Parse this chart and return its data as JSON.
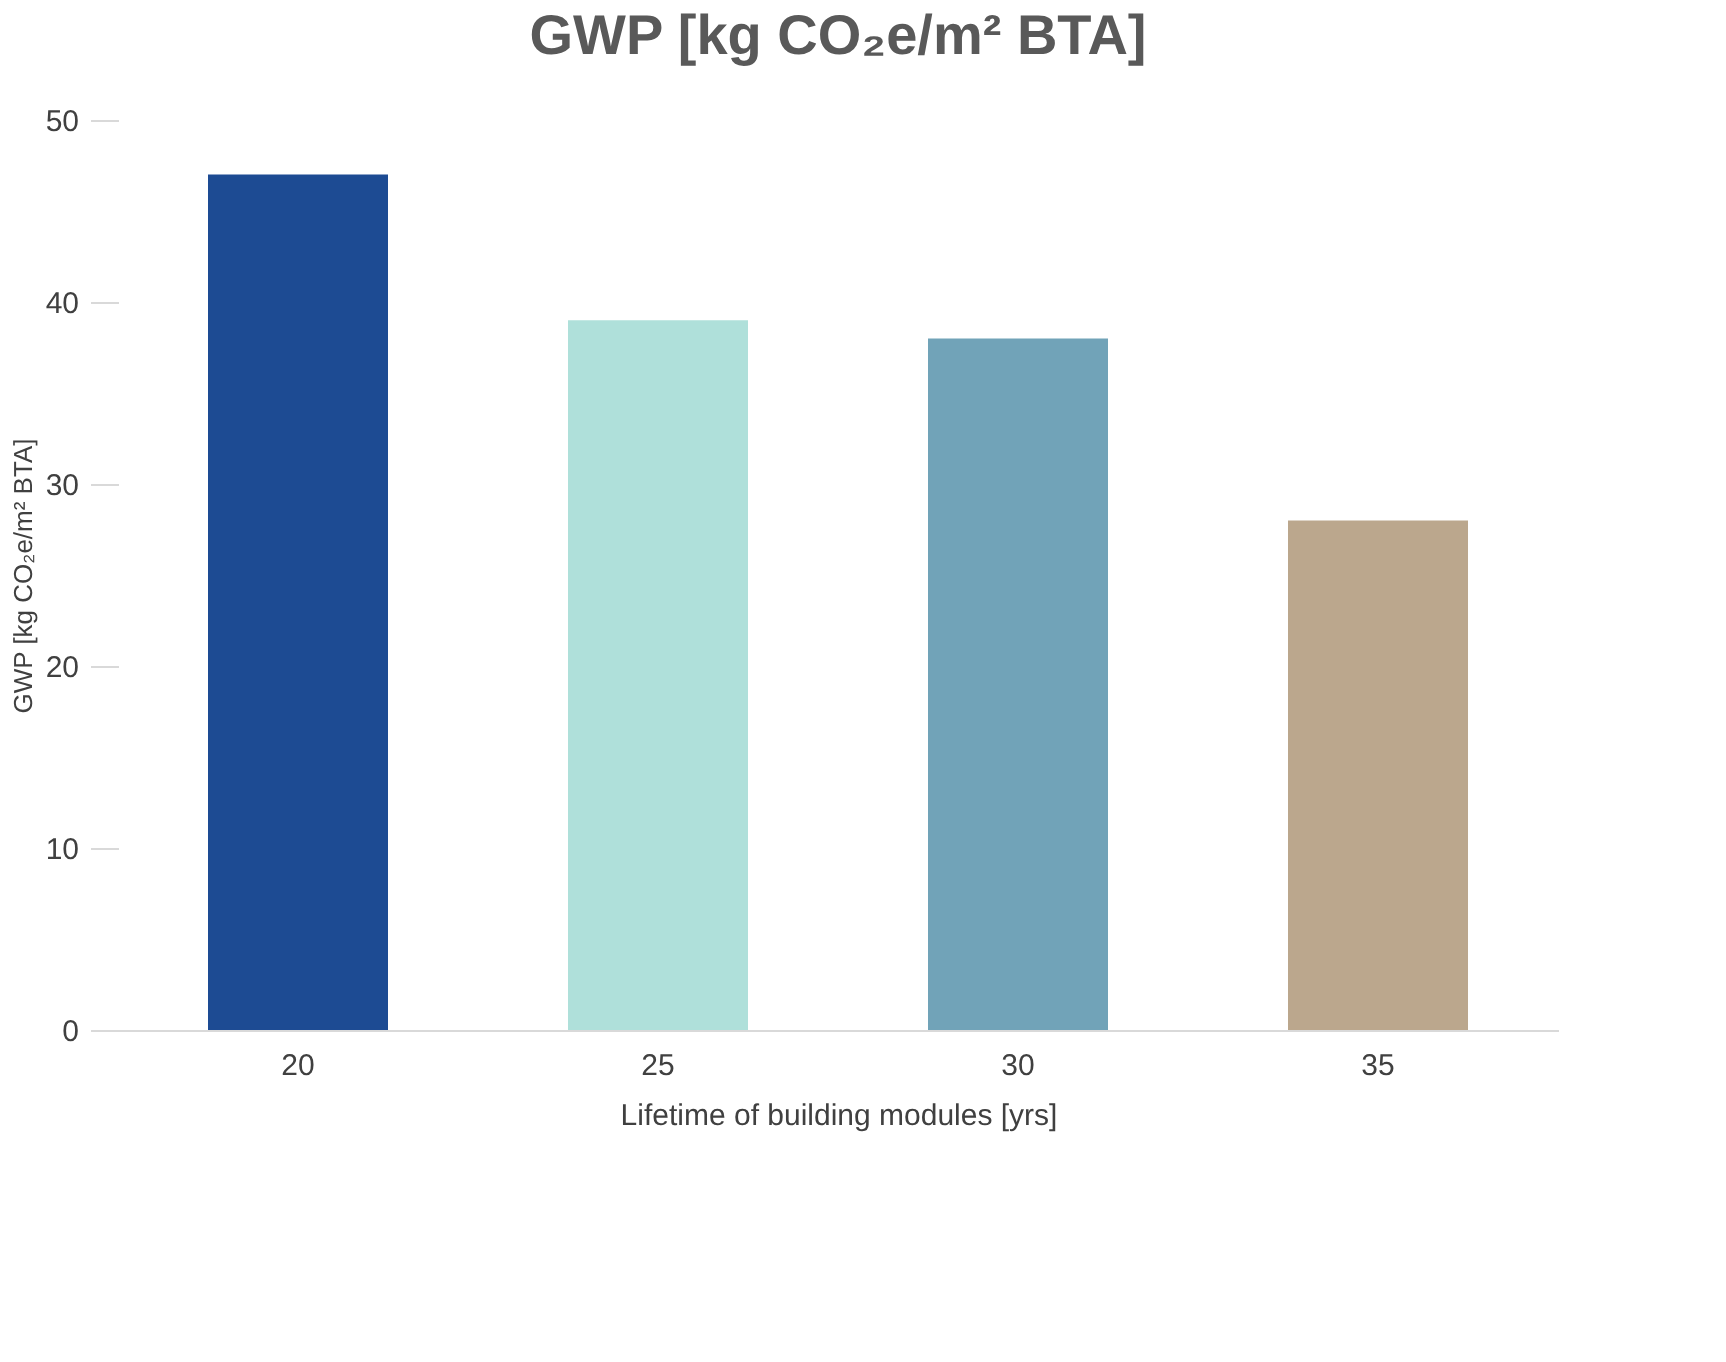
{
  "chart_data": {
    "type": "bar",
    "title": "GWP [kg CO₂e/m² BTA]",
    "xlabel": "Lifetime of building modules [yrs]",
    "ylabel": "GWP [kg CO₂e/m² BTA]",
    "categories": [
      "20",
      "25",
      "30",
      "35"
    ],
    "values": [
      47,
      39,
      38,
      28
    ],
    "colors": [
      "#1d4b93",
      "#afe0da",
      "#71a3b8",
      "#bba78d"
    ],
    "ylim": [
      0,
      50
    ],
    "yticks": [
      0,
      10,
      20,
      30,
      40,
      50
    ],
    "grid": false
  }
}
